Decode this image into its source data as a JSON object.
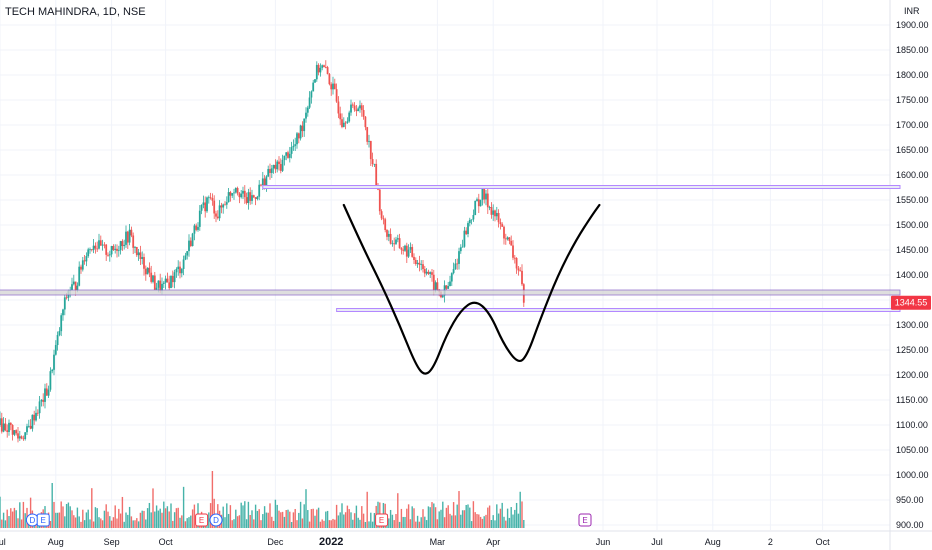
{
  "header": {
    "symbol_line": "TECH MAHINDRA, 1D, NSE",
    "currency": "INR"
  },
  "price_tag": {
    "value": "1344.55",
    "color": "#f23645"
  },
  "colors": {
    "up": "#26a69a",
    "down": "#ef5350",
    "level_purple": "#b388ff",
    "level_gray": "#bdbdbd",
    "pattern": "#000000"
  },
  "chart_data": {
    "type": "candlestick",
    "title": "TECH MAHINDRA, 1D, NSE",
    "ylim": [
      900,
      1950
    ],
    "y_ticks": [
      900,
      950,
      1000,
      1050,
      1100,
      1150,
      1200,
      1250,
      1300,
      1350,
      1400,
      1450,
      1500,
      1550,
      1600,
      1650,
      1700,
      1750,
      1800,
      1850,
      1900
    ],
    "y_tick_labels": [
      "900.00",
      "950.00",
      "1000.00",
      "1050.00",
      "1100.00",
      "1150.00",
      "1200.00",
      "1250.00",
      "1300.00",
      "1350.00",
      "1400.00",
      "1450.00",
      "1500.00",
      "1550.00",
      "1600.00",
      "1650.00",
      "1700.00",
      "1750.00",
      "1800.00",
      "1850.00",
      "1900.00"
    ],
    "x_ticks": [
      {
        "label": "Jul",
        "day": 0,
        "bold": false
      },
      {
        "label": "Aug",
        "day": 31,
        "bold": false
      },
      {
        "label": "Sep",
        "day": 62,
        "bold": false
      },
      {
        "label": "Oct",
        "day": 92,
        "bold": false
      },
      {
        "label": "Dec",
        "day": 153,
        "bold": false
      },
      {
        "label": "2022",
        "day": 184,
        "bold": true
      },
      {
        "label": "Mar",
        "day": 243,
        "bold": false
      },
      {
        "label": "Apr",
        "day": 274,
        "bold": false
      },
      {
        "label": "Jun",
        "day": 335,
        "bold": false
      },
      {
        "label": "Jul",
        "day": 365,
        "bold": false
      },
      {
        "label": "Aug",
        "day": 396,
        "bold": false
      },
      {
        "label": "2",
        "day": 428,
        "bold": false
      },
      {
        "label": "Oct",
        "day": 457,
        "bold": false
      }
    ],
    "price_path": [
      [
        0,
        1100
      ],
      [
        6,
        1095
      ],
      [
        10,
        1075
      ],
      [
        15,
        1085
      ],
      [
        19,
        1120
      ],
      [
        23,
        1145
      ],
      [
        27,
        1175
      ],
      [
        29,
        1220
      ],
      [
        32,
        1270
      ],
      [
        35,
        1330
      ],
      [
        38,
        1370
      ],
      [
        42,
        1380
      ],
      [
        47,
        1440
      ],
      [
        52,
        1465
      ],
      [
        57,
        1450
      ],
      [
        62,
        1445
      ],
      [
        67,
        1465
      ],
      [
        72,
        1480
      ],
      [
        77,
        1435
      ],
      [
        82,
        1410
      ],
      [
        86,
        1380
      ],
      [
        91,
        1375
      ],
      [
        96,
        1395
      ],
      [
        101,
        1420
      ],
      [
        106,
        1470
      ],
      [
        111,
        1520
      ],
      [
        116,
        1555
      ],
      [
        121,
        1520
      ],
      [
        126,
        1555
      ],
      [
        131,
        1580
      ],
      [
        136,
        1550
      ],
      [
        141,
        1555
      ],
      [
        146,
        1585
      ],
      [
        151,
        1610
      ],
      [
        156,
        1620
      ],
      [
        160,
        1645
      ],
      [
        164,
        1660
      ],
      [
        168,
        1700
      ],
      [
        172,
        1760
      ],
      [
        175,
        1800
      ],
      [
        178,
        1820
      ],
      [
        182,
        1800
      ],
      [
        186,
        1760
      ],
      [
        190,
        1710
      ],
      [
        194,
        1725
      ],
      [
        198,
        1740
      ],
      [
        202,
        1720
      ],
      [
        205,
        1660
      ],
      [
        208,
        1610
      ],
      [
        210,
        1560
      ],
      [
        213,
        1500
      ],
      [
        217,
        1470
      ],
      [
        221,
        1460
      ],
      [
        225,
        1450
      ],
      [
        229,
        1440
      ],
      [
        233,
        1425
      ],
      [
        237,
        1410
      ],
      [
        241,
        1380
      ],
      [
        245,
        1360
      ],
      [
        249,
        1375
      ],
      [
        253,
        1420
      ],
      [
        257,
        1470
      ],
      [
        261,
        1510
      ],
      [
        265,
        1545
      ],
      [
        268,
        1560
      ],
      [
        271,
        1545
      ],
      [
        275,
        1520
      ],
      [
        279,
        1490
      ],
      [
        283,
        1460
      ],
      [
        287,
        1420
      ],
      [
        289,
        1395
      ],
      [
        291,
        1345
      ]
    ],
    "volume_max": 100,
    "levels": [
      {
        "name": "resistance-line",
        "price": 1576,
        "from_day": 146,
        "to_day": 500,
        "color": "#b388ff"
      },
      {
        "name": "support-zone",
        "price_low": 1360,
        "price_high": 1370,
        "from_day": -5,
        "to_day": 500,
        "color": "#bdbdbd"
      },
      {
        "name": "lower-support-line",
        "price": 1330,
        "from_day": 187,
        "to_day": 500,
        "color": "#b388ff"
      }
    ],
    "pattern_points": [
      [
        191,
        1540
      ],
      [
        201,
        1460
      ],
      [
        212,
        1380
      ],
      [
        222,
        1300
      ],
      [
        231,
        1220
      ],
      [
        236,
        1198
      ],
      [
        241,
        1215
      ],
      [
        248,
        1280
      ],
      [
        256,
        1330
      ],
      [
        264,
        1350
      ],
      [
        272,
        1325
      ],
      [
        280,
        1260
      ],
      [
        288,
        1222
      ],
      [
        293,
        1240
      ],
      [
        300,
        1310
      ],
      [
        310,
        1400
      ],
      [
        320,
        1470
      ],
      [
        329,
        1520
      ],
      [
        333,
        1540
      ]
    ],
    "events": [
      {
        "kind": "dividend",
        "label": "D",
        "day": 18,
        "color": "#2962ff"
      },
      {
        "kind": "earnings",
        "label": "E",
        "day": 24,
        "color": "#2962ff"
      },
      {
        "kind": "earnings",
        "label": "E",
        "day": 112,
        "color": "#f23645"
      },
      {
        "kind": "dividend",
        "label": "D",
        "day": 120,
        "color": "#2962ff"
      },
      {
        "kind": "earnings",
        "label": "E",
        "day": 212,
        "color": "#f23645"
      },
      {
        "kind": "earnings",
        "label": "E",
        "day": 325,
        "color": "#9c27b0"
      }
    ]
  }
}
